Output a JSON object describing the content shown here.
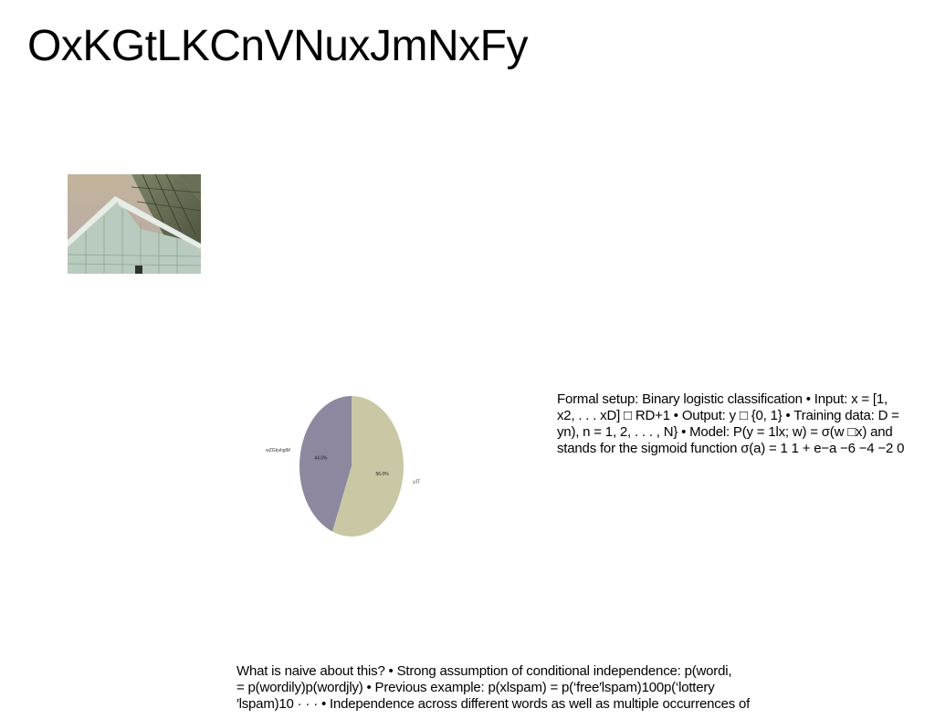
{
  "slide": {
    "title": "OxKGtLKCnVNuxJmNxFy"
  },
  "chart_data": {
    "type": "pie",
    "slices": [
      {
        "label": "wZGbshglM",
        "value": 44.0,
        "display": "44.0%",
        "color": "#8d879f"
      },
      {
        "label": "yJT",
        "value": 56.0,
        "display": "56.0%",
        "color": "#c9c7a4"
      }
    ]
  },
  "text_right": {
    "lines": [
      "Formal setup: Binary logistic classification • Input: x = [1,",
      "x2, . . . xD] □ RD+1 • Output: y □ {0, 1} • Training data: D =",
      "yn), n = 1, 2, . . . , N} • Model: P(y = 1lx; w) = σ(w □x) and",
      "stands for the sigmoid function σ(a) = 1 1 + e−a −6 −4 −2 0"
    ]
  },
  "text_bottom": {
    "lines": [
      "What is naive about this? • Strong assumption of conditional independence: p(wordi,",
      "= p(wordily)p(wordjly) • Previous example: p(xlspam) = p(‘free′lspam)100p(‘lottery",
      "′lspam)10 · · · • Independence across different words as well as multiple occurrences of"
    ]
  }
}
